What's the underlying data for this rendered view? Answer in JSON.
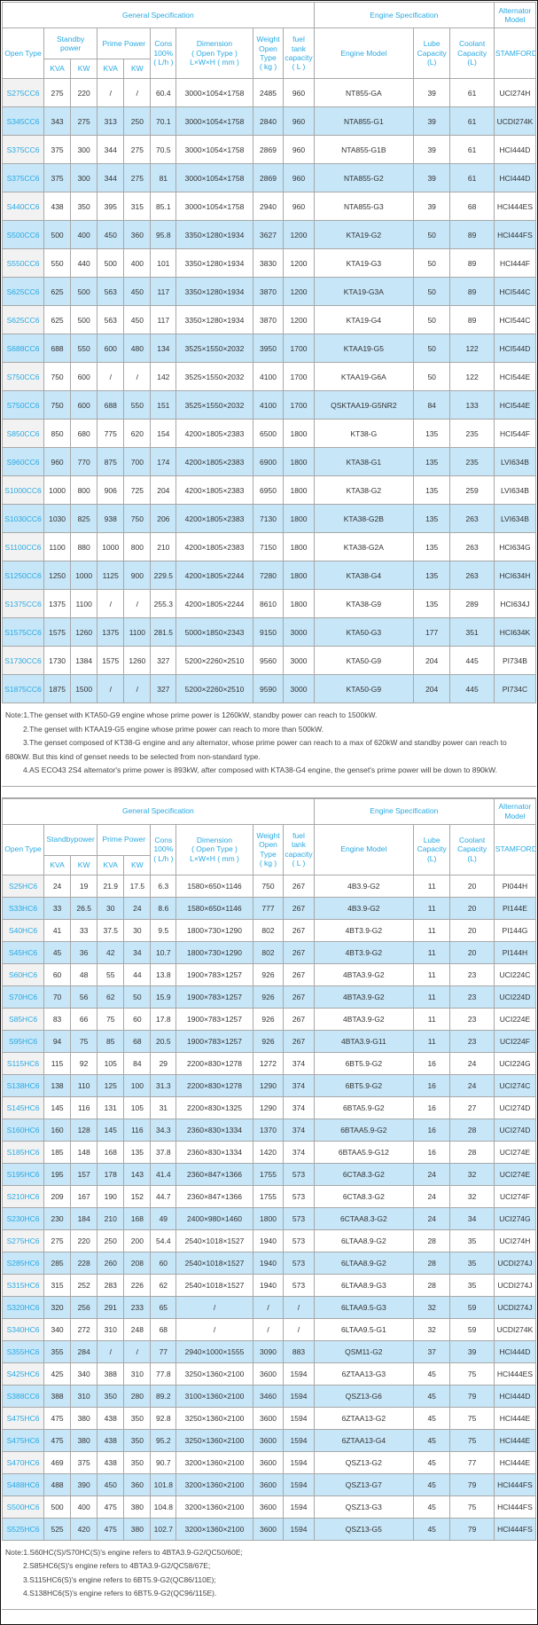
{
  "accent_color": "#29a9e2",
  "stripe_color": "#c7e6f8",
  "table1": {
    "header": {
      "general": "General Specification",
      "engine": "Engine Specification",
      "alternator": "Alternator\nModel",
      "open_type": "Open Type",
      "standby": "Standby\npower",
      "prime": "Prime Power",
      "kva": "KVA",
      "kw": "KW",
      "cons": "Cons\n100%\n( L/h )",
      "dimension": "Dimension\n( Open Type )\nL×W×H ( mm )",
      "weight": "Weight\nOpen Type\n( kg )",
      "fuel": "fuel tank\ncapacity\n( L )",
      "engine_model": "Engine Model",
      "lube": "Lube\nCapacity\n(L)",
      "coolant": "Coolant\nCapacity\n(L)",
      "stamford": "STAMFORD"
    },
    "rows": [
      [
        "S275CC6",
        "275",
        "220",
        "/",
        "/",
        "60.4",
        "3000×1054×1758",
        "2485",
        "960",
        "NT855-GA",
        "39",
        "61",
        "UCI274H"
      ],
      [
        "S345CC6",
        "343",
        "275",
        "313",
        "250",
        "70.1",
        "3000×1054×1758",
        "2840",
        "960",
        "NTA855-G1",
        "39",
        "61",
        "UCDI274K"
      ],
      [
        "S375CC6",
        "375",
        "300",
        "344",
        "275",
        "70.5",
        "3000×1054×1758",
        "2869",
        "960",
        "NTA855-G1B",
        "39",
        "61",
        "HCI444D"
      ],
      [
        "S375CC6",
        "375",
        "300",
        "344",
        "275",
        "81",
        "3000×1054×1758",
        "2869",
        "960",
        "NTA855-G2",
        "39",
        "61",
        "HCI444D"
      ],
      [
        "S440CC6",
        "438",
        "350",
        "395",
        "315",
        "85.1",
        "3000×1054×1758",
        "2940",
        "960",
        "NTA855-G3",
        "39",
        "68",
        "HCI444ES"
      ],
      [
        "S500CC6",
        "500",
        "400",
        "450",
        "360",
        "95.8",
        "3350×1280×1934",
        "3627",
        "1200",
        "KTA19-G2",
        "50",
        "89",
        "HCI444FS"
      ],
      [
        "S550CC6",
        "550",
        "440",
        "500",
        "400",
        "101",
        "3350×1280×1934",
        "3830",
        "1200",
        "KTA19-G3",
        "50",
        "89",
        "HCI444F"
      ],
      [
        "S625CC6",
        "625",
        "500",
        "563",
        "450",
        "117",
        "3350×1280×1934",
        "3870",
        "1200",
        "KTA19-G3A",
        "50",
        "89",
        "HCI544C"
      ],
      [
        "S625CC6",
        "625",
        "500",
        "563",
        "450",
        "117",
        "3350×1280×1934",
        "3870",
        "1200",
        "KTA19-G4",
        "50",
        "89",
        "HCI544C"
      ],
      [
        "S688CC6",
        "688",
        "550",
        "600",
        "480",
        "134",
        "3525×1550×2032",
        "3950",
        "1700",
        "KTAA19-G5",
        "50",
        "122",
        "HCI544D"
      ],
      [
        "S750CC6",
        "750",
        "600",
        "/",
        "/",
        "142",
        "3525×1550×2032",
        "4100",
        "1700",
        "KTAA19-G6A",
        "50",
        "122",
        "HCI544E"
      ],
      [
        "S750CC6",
        "750",
        "600",
        "688",
        "550",
        "151",
        "3525×1550×2032",
        "4100",
        "1700",
        "QSKTAA19-G5NR2",
        "84",
        "133",
        "HCI544E"
      ],
      [
        "S850CC6",
        "850",
        "680",
        "775",
        "620",
        "154",
        "4200×1805×2383",
        "6500",
        "1800",
        "KT38-G",
        "135",
        "235",
        "HCI544F"
      ],
      [
        "S960CC6",
        "960",
        "770",
        "875",
        "700",
        "174",
        "4200×1805×2383",
        "6900",
        "1800",
        "KTA38-G1",
        "135",
        "235",
        "LVI634B"
      ],
      [
        "S1000CC6",
        "1000",
        "800",
        "906",
        "725",
        "204",
        "4200×1805×2383",
        "6950",
        "1800",
        "KTA38-G2",
        "135",
        "259",
        "LVI634B"
      ],
      [
        "S1030CC6",
        "1030",
        "825",
        "938",
        "750",
        "206",
        "4200×1805×2383",
        "7130",
        "1800",
        "KTA38-G2B",
        "135",
        "263",
        "LVI634B"
      ],
      [
        "S1100CC6",
        "1100",
        "880",
        "1000",
        "800",
        "210",
        "4200×1805×2383",
        "7150",
        "1800",
        "KTA38-G2A",
        "135",
        "263",
        "HCI634G"
      ],
      [
        "S1250CC6",
        "1250",
        "1000",
        "1125",
        "900",
        "229.5",
        "4200×1805×2244",
        "7280",
        "1800",
        "KTA38-G4",
        "135",
        "263",
        "HCI634H"
      ],
      [
        "S1375CC6",
        "1375",
        "1100",
        "/",
        "/",
        "255.3",
        "4200×1805×2244",
        "8610",
        "1800",
        "KTA38-G9",
        "135",
        "289",
        "HCI634J"
      ],
      [
        "S1575CC6",
        "1575",
        "1260",
        "1375",
        "1100",
        "281.5",
        "5000×1850×2343",
        "9150",
        "3000",
        "KTA50-G3",
        "177",
        "351",
        "HCI634K"
      ],
      [
        "S1730CC6",
        "1730",
        "1384",
        "1575",
        "1260",
        "327",
        "5200×2260×2510",
        "9560",
        "3000",
        "KTA50-G9",
        "204",
        "445",
        "PI734B"
      ],
      [
        "S1875CC6",
        "1875",
        "1500",
        "/",
        "/",
        "327",
        "5200×2260×2510",
        "9590",
        "3000",
        "KTA50-G9",
        "204",
        "445",
        "PI734C"
      ]
    ]
  },
  "note1": {
    "lines": [
      "Note:1.The genset with KTA50-G9 engine whose prime power is 1260kW, standby power can reach to 1500kW.",
      "2.The genset with KTAA19-G5 engine whose prime power can reach to more than 500kW.",
      "3.The genset composed of KT38-G engine and any alternator, whose prime power can reach to a max of 620kW and standby power can reach to 680kW. But this kind of genset needs to be selected from non-standard type.",
      "4.AS ECO43 2S4 alternator's prime power is 893kW, after composed with KTA38-G4 engine, the genset's prime power will be down to 890kW."
    ]
  },
  "table2": {
    "header": {
      "general": "General Specification",
      "engine": "Engine Specification",
      "alternator": "Alternator\nModel",
      "open_type": "Open Type",
      "standby": "Standbypower",
      "prime": "Prime Power",
      "kva": "KVA",
      "kw": "KW",
      "cons": "Cons\n100%\n( L/h )",
      "dimension": "Dimension\n( Open Type )\nL×W×H ( mm )",
      "weight": "Weight\nOpen Type\n( kg )",
      "fuel": "fuel tank\ncapacity\n( L )",
      "engine_model": "Engine Model",
      "lube": "Lube\nCapacity\n(L)",
      "coolant": "Coolant\nCapacity\n(L)",
      "stamford": "STAMFORD"
    },
    "rows": [
      [
        "S25HC6",
        "24",
        "19",
        "21.9",
        "17.5",
        "6.3",
        "1580×650×1146",
        "750",
        "267",
        "4B3.9-G2",
        "11",
        "20",
        "PI044H"
      ],
      [
        "S33HC6",
        "33",
        "26.5",
        "30",
        "24",
        "8.6",
        "1580×650×1146",
        "777",
        "267",
        "4B3.9-G2",
        "11",
        "20",
        "PI144E"
      ],
      [
        "S40HC6",
        "41",
        "33",
        "37.5",
        "30",
        "9.5",
        "1800×730×1290",
        "802",
        "267",
        "4BT3.9-G2",
        "11",
        "20",
        "PI144G"
      ],
      [
        "S45HC6",
        "45",
        "36",
        "42",
        "34",
        "10.7",
        "1800×730×1290",
        "802",
        "267",
        "4BT3.9-G2",
        "11",
        "20",
        "PI144H"
      ],
      [
        "S60HC6",
        "60",
        "48",
        "55",
        "44",
        "13.8",
        "1900×783×1257",
        "926",
        "267",
        "4BTA3.9-G2",
        "11",
        "23",
        "UCI224C"
      ],
      [
        "S70HC6",
        "70",
        "56",
        "62",
        "50",
        "15.9",
        "1900×783×1257",
        "926",
        "267",
        "4BTA3.9-G2",
        "11",
        "23",
        "UCI224D"
      ],
      [
        "S85HC6",
        "83",
        "66",
        "75",
        "60",
        "17.8",
        "1900×783×1257",
        "926",
        "267",
        "4BTA3.9-G2",
        "11",
        "23",
        "UCI224E"
      ],
      [
        "S95HC6",
        "94",
        "75",
        "85",
        "68",
        "20.5",
        "1900×783×1257",
        "926",
        "267",
        "4BTA3.9-G11",
        "11",
        "23",
        "UCI224F"
      ],
      [
        "S115HC6",
        "115",
        "92",
        "105",
        "84",
        "29",
        "2200×830×1278",
        "1272",
        "374",
        "6BT5.9-G2",
        "16",
        "24",
        "UCI224G"
      ],
      [
        "S138HC6",
        "138",
        "110",
        "125",
        "100",
        "31.3",
        "2200×830×1278",
        "1290",
        "374",
        "6BT5.9-G2",
        "16",
        "24",
        "UCI274C"
      ],
      [
        "S145HC6",
        "145",
        "116",
        "131",
        "105",
        "31",
        "2200×830×1325",
        "1290",
        "374",
        "6BTA5.9-G2",
        "16",
        "27",
        "UCI274D"
      ],
      [
        "S160HC6",
        "160",
        "128",
        "145",
        "116",
        "34.3",
        "2360×830×1334",
        "1370",
        "374",
        "6BTAA5.9-G2",
        "16",
        "28",
        "UCI274D"
      ],
      [
        "S185HC6",
        "185",
        "148",
        "168",
        "135",
        "37.8",
        "2360×830×1334",
        "1420",
        "374",
        "6BTAA5.9-G12",
        "16",
        "28",
        "UCI274E"
      ],
      [
        "S195HC6",
        "195",
        "157",
        "178",
        "143",
        "41.4",
        "2360×847×1366",
        "1755",
        "573",
        "6CTA8.3-G2",
        "24",
        "32",
        "UCI274E"
      ],
      [
        "S210HC6",
        "209",
        "167",
        "190",
        "152",
        "44.7",
        "2360×847×1366",
        "1755",
        "573",
        "6CTA8.3-G2",
        "24",
        "32",
        "UCI274F"
      ],
      [
        "S230HC6",
        "230",
        "184",
        "210",
        "168",
        "49",
        "2400×980×1460",
        "1800",
        "573",
        "6CTAA8.3-G2",
        "24",
        "34",
        "UCI274G"
      ],
      [
        "S275HC6",
        "275",
        "220",
        "250",
        "200",
        "54.4",
        "2540×1018×1527",
        "1940",
        "573",
        "6LTAA8.9-G2",
        "28",
        "35",
        "UCI274H"
      ],
      [
        "S285HC6",
        "285",
        "228",
        "260",
        "208",
        "60",
        "2540×1018×1527",
        "1940",
        "573",
        "6LTAA8.9-G2",
        "28",
        "35",
        "UCDI274J"
      ],
      [
        "S315HC6",
        "315",
        "252",
        "283",
        "226",
        "62",
        "2540×1018×1527",
        "1940",
        "573",
        "6LTAA8.9-G3",
        "28",
        "35",
        "UCDI274J"
      ],
      [
        "S320HC6",
        "320",
        "256",
        "291",
        "233",
        "65",
        "/",
        "/",
        "/",
        "6LTAA9.5-G3",
        "32",
        "59",
        "UCDI274J"
      ],
      [
        "S340HC6",
        "340",
        "272",
        "310",
        "248",
        "68",
        "/",
        "/",
        "/",
        "6LTAA9.5-G1",
        "32",
        "59",
        "UCDI274K"
      ],
      [
        "S355HC6",
        "355",
        "284",
        "/",
        "/",
        "77",
        "2940×1000×1555",
        "3090",
        "883",
        "QSM11-G2",
        "37",
        "39",
        "HCI444D"
      ],
      [
        "S425HC6",
        "425",
        "340",
        "388",
        "310",
        "77.8",
        "3250×1360×2100",
        "3600",
        "1594",
        "6ZTAA13-G3",
        "45",
        "75",
        "HCI444ES"
      ],
      [
        "S388CC6",
        "388",
        "310",
        "350",
        "280",
        "89.2",
        "3100×1360×2100",
        "3460",
        "1594",
        "QSZ13-G6",
        "45",
        "79",
        "HCI444D"
      ],
      [
        "S475HC6",
        "475",
        "380",
        "438",
        "350",
        "92.8",
        "3250×1360×2100",
        "3600",
        "1594",
        "6ZTAA13-G2",
        "45",
        "75",
        "HCI444E"
      ],
      [
        "S475HC6",
        "475",
        "380",
        "438",
        "350",
        "95.2",
        "3250×1360×2100",
        "3600",
        "1594",
        "6ZTAA13-G4",
        "45",
        "75",
        "HCI444E"
      ],
      [
        "S470HC6",
        "469",
        "375",
        "438",
        "350",
        "90.7",
        "3200×1360×2100",
        "3600",
        "1594",
        "QSZ13-G2",
        "45",
        "77",
        "HCI444E"
      ],
      [
        "S488HC6",
        "488",
        "390",
        "450",
        "360",
        "101.8",
        "3200×1360×2100",
        "3600",
        "1594",
        "QSZ13-G7",
        "45",
        "79",
        "HCI444FS"
      ],
      [
        "S500HC6",
        "500",
        "400",
        "475",
        "380",
        "104.8",
        "3200×1360×2100",
        "3600",
        "1594",
        "QSZ13-G3",
        "45",
        "75",
        "HCI444FS"
      ],
      [
        "S525HC6",
        "525",
        "420",
        "475",
        "380",
        "102.7",
        "3200×1360×2100",
        "3600",
        "1594",
        "QSZ13-G5",
        "45",
        "79",
        "HCI444FS"
      ]
    ]
  },
  "note2": {
    "lines": [
      "Note:1.S60HC(S)/S70HC(S)'s engine refers to 4BTA3.9-G2/QC50/60E;",
      "2.S85HC6(S)'s engine refers to 4BTA3.9-G2/QC58/67E;",
      "3.S115HC6(S)'s engine refers to 6BT5.9-G2(QC86/110E);",
      "4.S138HC6(S)'s engine refers to 6BT5.9-G2(QC96/115E)."
    ]
  }
}
